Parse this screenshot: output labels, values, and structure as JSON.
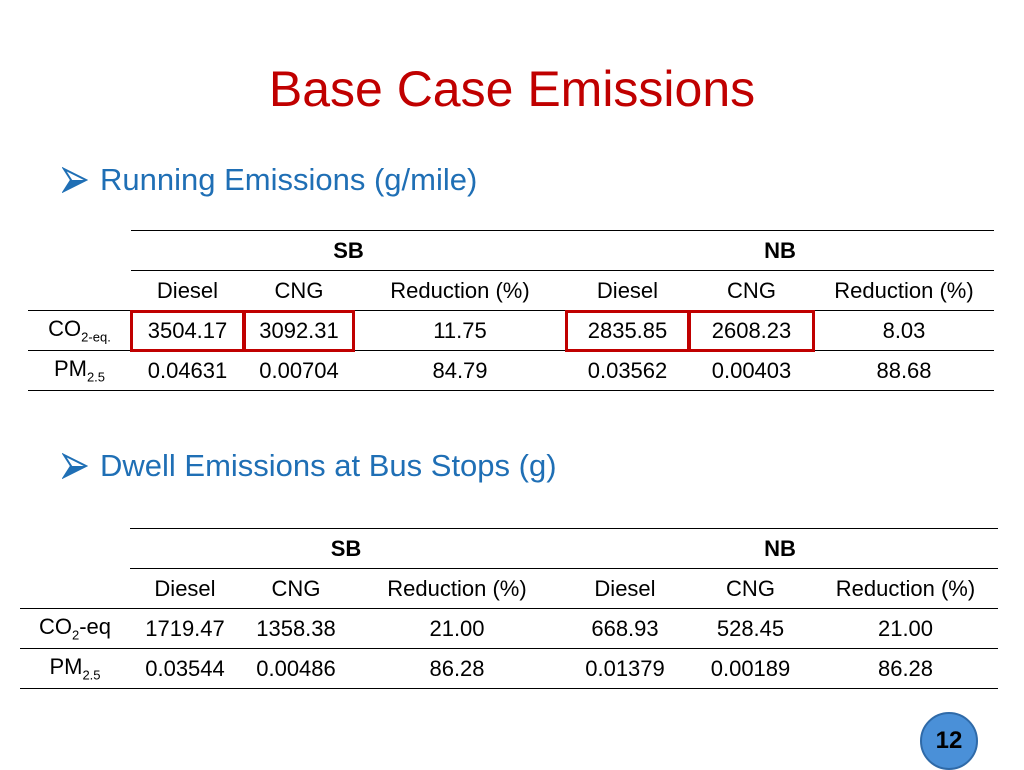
{
  "slide": {
    "title": "Base Case Emissions",
    "page_number": "12",
    "accent_color": "#c00000",
    "bullet_color": "#1f6fb5"
  },
  "running": {
    "heading": "Running Emissions (g/mile)",
    "group_headers": [
      "SB",
      "NB"
    ],
    "col_headers": [
      "Diesel",
      "CNG",
      "Reduction (%)",
      "Diesel",
      "CNG",
      "Reduction (%)"
    ],
    "rows": [
      {
        "label_main": "CO",
        "label_sub": "2-eq.",
        "label_tail": "",
        "values": [
          "3504.17",
          "3092.31",
          "11.75",
          "2835.85",
          "2608.23",
          "8.03"
        ]
      },
      {
        "label_main": "PM",
        "label_sub": "2.5",
        "label_tail": "",
        "values": [
          "0.04631",
          "0.00704",
          "84.79",
          "0.03562",
          "0.00403",
          "88.68"
        ]
      }
    ]
  },
  "dwell": {
    "heading": "Dwell Emissions at Bus Stops (g)",
    "group_headers": [
      "SB",
      "NB"
    ],
    "col_headers": [
      "Diesel",
      "CNG",
      "Reduction (%)",
      "Diesel",
      "CNG",
      "Reduction (%)"
    ],
    "rows": [
      {
        "label_main": "CO",
        "label_sub": "2",
        "label_tail": "-eq",
        "values": [
          "1719.47",
          "1358.38",
          "21.00",
          "668.93",
          "528.45",
          "21.00"
        ]
      },
      {
        "label_main": "PM",
        "label_sub": "2.5",
        "label_tail": "",
        "values": [
          "0.03544",
          "0.00486",
          "86.28",
          "0.01379",
          "0.00189",
          "86.28"
        ]
      }
    ]
  }
}
